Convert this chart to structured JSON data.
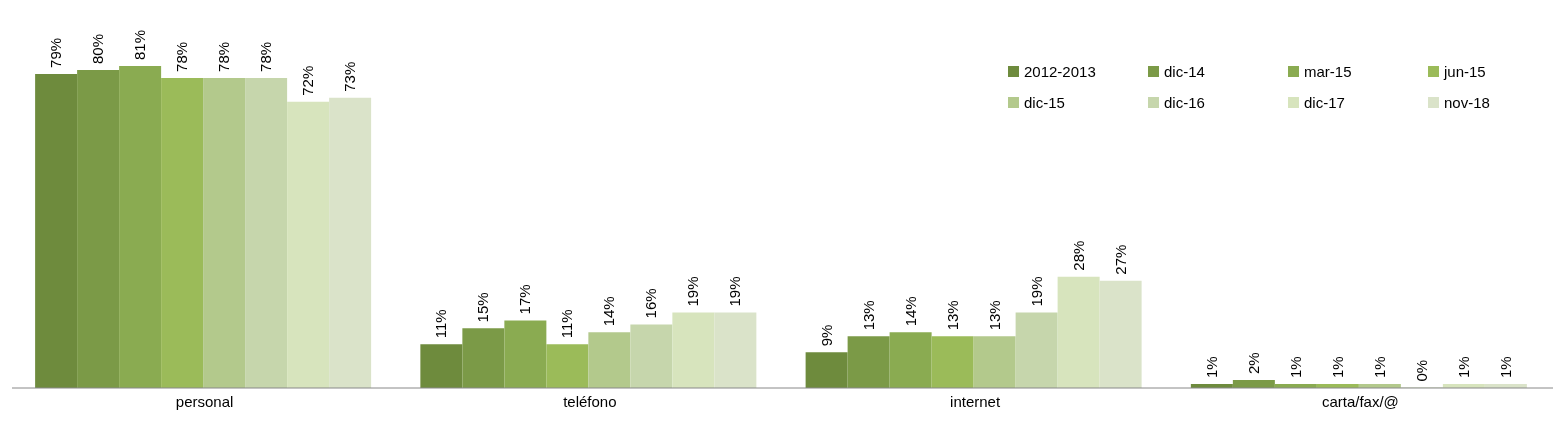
{
  "chart_data": {
    "type": "bar",
    "categories": [
      "personal",
      "teléfono",
      "internet",
      "carta/fax/@"
    ],
    "legend": "top right",
    "series": [
      {
        "name": "2012-2013",
        "color": "#6e8b3d",
        "values": [
          79,
          11,
          9,
          1
        ],
        "value_labels": [
          "79%",
          "11%",
          "9%",
          "1%"
        ]
      },
      {
        "name": "dic-14",
        "color": "#7b9a47",
        "values": [
          80,
          15,
          13,
          2
        ],
        "value_labels": [
          "80%",
          "15%",
          "13%",
          "2%"
        ]
      },
      {
        "name": "mar-15",
        "color": "#8aab51",
        "values": [
          81,
          17,
          14,
          1
        ],
        "value_labels": [
          "81%",
          "17%",
          "14%",
          "1%"
        ]
      },
      {
        "name": "jun-15",
        "color": "#9bbb59",
        "values": [
          78,
          11,
          13,
          1
        ],
        "value_labels": [
          "78%",
          "11%",
          "13%",
          "1%"
        ]
      },
      {
        "name": "dic-15",
        "color": "#b3c98c",
        "values": [
          78,
          14,
          13,
          1
        ],
        "value_labels": [
          "78%",
          "14%",
          "13%",
          "1%"
        ]
      },
      {
        "name": "dic-16",
        "color": "#c6d6ac",
        "values": [
          78,
          16,
          19,
          0
        ],
        "value_labels": [
          "78%",
          "16%",
          "19%",
          "0%"
        ]
      },
      {
        "name": "dic-17",
        "color": "#d7e4bd",
        "values": [
          72,
          19,
          28,
          1
        ],
        "value_labels": [
          "72%",
          "19%",
          "28%",
          "1%"
        ]
      },
      {
        "name": "nov-18",
        "color": "#dae3c9",
        "values": [
          73,
          19,
          27,
          1
        ],
        "value_labels": [
          "73%",
          "19%",
          "27%",
          "1%"
        ]
      }
    ]
  }
}
